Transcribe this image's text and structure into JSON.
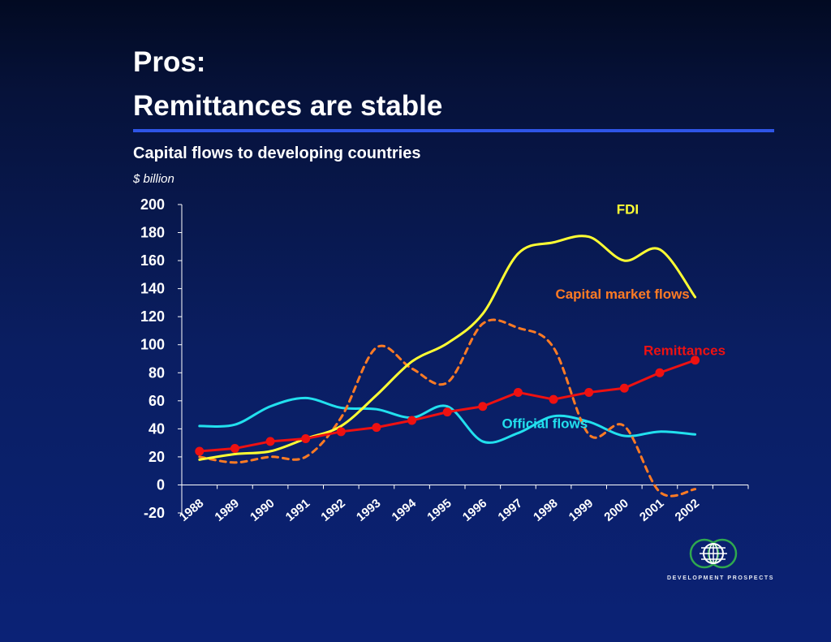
{
  "slide": {
    "title_line1": "Pros:",
    "title_line2": "Remittances are stable",
    "accent_color": "#2e55e6"
  },
  "logo": {
    "text": "DEVELOPMENT PROSPECTS",
    "icon": "globe-icon"
  },
  "chart_data": {
    "type": "line",
    "title": "Capital flows to developing countries",
    "ylabel": "$ billion",
    "xlabel": "",
    "ylim": [
      -20,
      200
    ],
    "yticks": [
      -20,
      0,
      20,
      40,
      60,
      80,
      100,
      120,
      140,
      160,
      180,
      200
    ],
    "categories": [
      "1988",
      "1989",
      "1990",
      "1991",
      "1992",
      "1993",
      "1994",
      "1995",
      "1996",
      "1997",
      "1998",
      "1999",
      "2000",
      "2001",
      "2002"
    ],
    "grid": false,
    "legend": "inline labels",
    "series": [
      {
        "name": "FDI",
        "color": "#ffff33",
        "style": "solid",
        "values": [
          18,
          22,
          24,
          33,
          42,
          64,
          88,
          101,
          122,
          165,
          173,
          177,
          160,
          168,
          134
        ]
      },
      {
        "name": "Capital market flows",
        "color": "#ff7b24",
        "style": "dashed",
        "values": [
          20,
          16,
          20,
          20,
          48,
          98,
          83,
          73,
          115,
          112,
          98,
          36,
          42,
          -5,
          -3
        ]
      },
      {
        "name": "Remittances",
        "color": "#ee1111",
        "style": "solid-markers",
        "values": [
          24,
          26,
          31,
          33,
          38,
          41,
          46,
          52,
          56,
          66,
          61,
          66,
          69,
          80,
          89
        ]
      },
      {
        "name": "Official flows",
        "color": "#22e0ee",
        "style": "solid",
        "values": [
          42,
          43,
          56,
          62,
          55,
          54,
          48,
          56,
          31,
          37,
          49,
          45,
          35,
          38,
          36
        ]
      }
    ]
  }
}
